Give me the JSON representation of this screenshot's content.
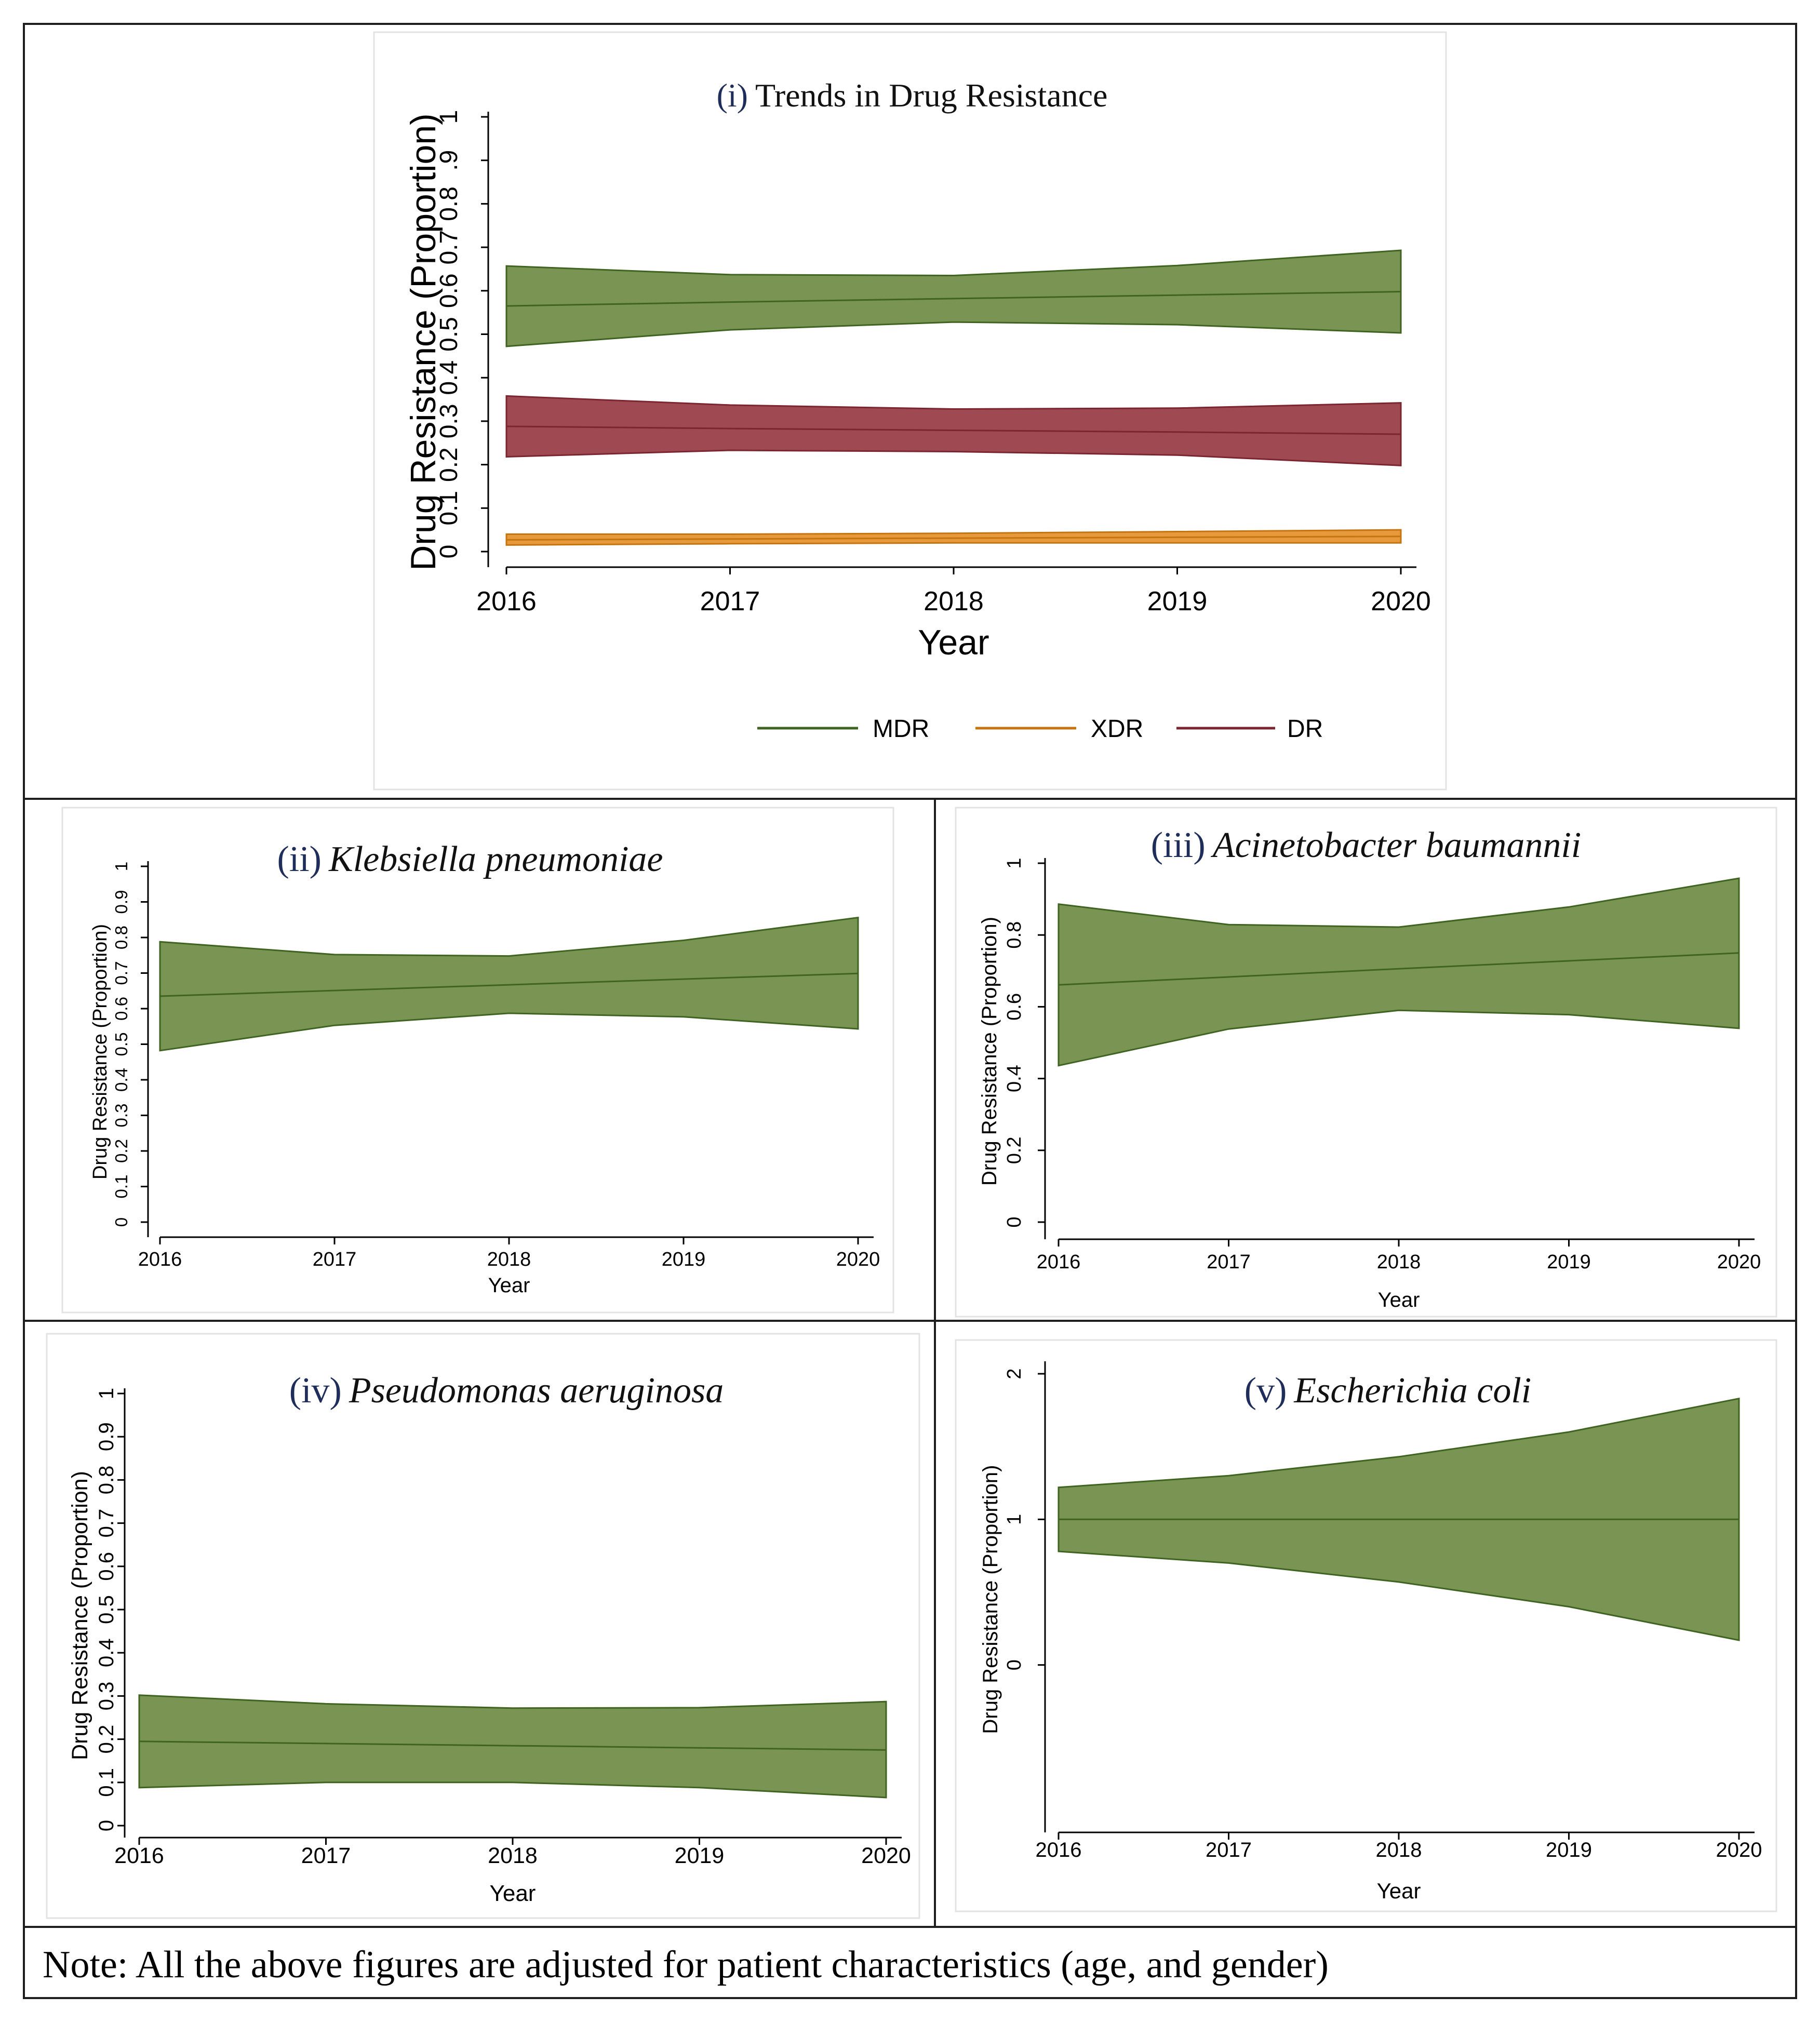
{
  "note": "Note: All the above figures are adjusted for patient characteristics (age, and gender)",
  "colors": {
    "MDR": "#7a9553",
    "XDR": "#e69a3c",
    "DR": "#9f4a52",
    "MDR_edge": "#3f6320",
    "XDR_edge": "#c57410",
    "DR_edge": "#7b2530"
  },
  "chart_data": [
    {
      "id": "p1",
      "type": "area",
      "title_num": "(i)",
      "title": "Trends in Drug Resistance",
      "xlabel": "Year",
      "ylabel": "Drug Resistance (Proportion)",
      "x": [
        2016,
        2017,
        2018,
        2019,
        2020
      ],
      "xlim": [
        2016,
        2020
      ],
      "ylim": [
        0,
        1
      ],
      "xticks": [
        "2016",
        "2017",
        "2018",
        "2019",
        "2020"
      ],
      "yticks": [
        {
          "v": 0,
          "t": "0"
        },
        {
          "v": 0.1,
          "t": "0.1"
        },
        {
          "v": 0.2,
          "t": "0.2"
        },
        {
          "v": 0.3,
          "t": "0.3"
        },
        {
          "v": 0.4,
          "t": "0.4"
        },
        {
          "v": 0.5,
          "t": "0.5"
        },
        {
          "v": 0.6,
          "t": "0.6"
        },
        {
          "v": 0.7,
          "t": "0.7"
        },
        {
          "v": 0.8,
          "t": "0.8"
        },
        {
          "v": 0.9,
          "t": ".9"
        },
        {
          "v": 1,
          "t": "1"
        }
      ],
      "legend": [
        "MDR",
        "XDR",
        "DR"
      ],
      "series": [
        {
          "name": "MDR",
          "color": "MDR",
          "mean": [
            0.565,
            0.574,
            0.582,
            0.59,
            0.598
          ],
          "lower": [
            0.472,
            0.51,
            0.528,
            0.522,
            0.503
          ],
          "upper": [
            0.657,
            0.637,
            0.635,
            0.658,
            0.693
          ]
        },
        {
          "name": "DR",
          "color": "DR",
          "mean": [
            0.288,
            0.283,
            0.279,
            0.275,
            0.27
          ],
          "lower": [
            0.218,
            0.233,
            0.23,
            0.222,
            0.198
          ],
          "upper": [
            0.358,
            0.337,
            0.328,
            0.33,
            0.342
          ]
        },
        {
          "name": "XDR",
          "color": "XDR",
          "mean": [
            0.027,
            0.029,
            0.031,
            0.033,
            0.035
          ],
          "lower": [
            0.015,
            0.018,
            0.02,
            0.02,
            0.02
          ],
          "upper": [
            0.04,
            0.04,
            0.042,
            0.046,
            0.05
          ]
        }
      ]
    },
    {
      "id": "p2",
      "type": "area",
      "title_num": "(ii)",
      "title": "Klebsiella pneumoniae",
      "xlabel": "Year",
      "ylabel": "Drug Resistance (Proportion)",
      "x": [
        2016,
        2017,
        2018,
        2019,
        2020
      ],
      "xlim": [
        2016,
        2020
      ],
      "ylim": [
        0,
        1
      ],
      "xticks": [
        "2016",
        "2017",
        "2018",
        "2019",
        "2020"
      ],
      "yticks": [
        {
          "v": 0,
          "t": "0"
        },
        {
          "v": 0.1,
          "t": "0.1"
        },
        {
          "v": 0.2,
          "t": "0.2"
        },
        {
          "v": 0.3,
          "t": "0.3"
        },
        {
          "v": 0.4,
          "t": "0.4"
        },
        {
          "v": 0.5,
          "t": "0.5"
        },
        {
          "v": 0.6,
          "t": "0.6"
        },
        {
          "v": 0.7,
          "t": "0.7"
        },
        {
          "v": 0.8,
          "t": "0.8"
        },
        {
          "v": 0.9,
          "t": "0.9"
        },
        {
          "v": 1,
          "t": "1"
        }
      ],
      "series": [
        {
          "name": "MDR",
          "color": "MDR",
          "mean": [
            0.635,
            0.651,
            0.667,
            0.683,
            0.699
          ],
          "lower": [
            0.482,
            0.553,
            0.587,
            0.577,
            0.543
          ],
          "upper": [
            0.788,
            0.752,
            0.748,
            0.792,
            0.856
          ]
        }
      ]
    },
    {
      "id": "p3",
      "type": "area",
      "title_num": "(iii)",
      "title": "Acinetobacter baumannii",
      "xlabel": "Year",
      "ylabel": "Drug Resistance (Proportion)",
      "x": [
        2016,
        2017,
        2018,
        2019,
        2020
      ],
      "xlim": [
        2016,
        2020
      ],
      "ylim": [
        0,
        1
      ],
      "xticks": [
        "2016",
        "2017",
        "2018",
        "2019",
        "2020"
      ],
      "yticks": [
        {
          "v": 0,
          "t": "0"
        },
        {
          "v": 0.2,
          "t": "0.2"
        },
        {
          "v": 0.4,
          "t": "0.4"
        },
        {
          "v": 0.6,
          "t": "0.6"
        },
        {
          "v": 0.8,
          "t": "0.8"
        },
        {
          "v": 1,
          "t": "1"
        }
      ],
      "series": [
        {
          "name": "MDR",
          "color": "MDR",
          "mean": [
            0.661,
            0.683,
            0.706,
            0.728,
            0.75
          ],
          "lower": [
            0.436,
            0.538,
            0.59,
            0.578,
            0.54
          ],
          "upper": [
            0.886,
            0.829,
            0.822,
            0.878,
            0.958
          ]
        }
      ]
    },
    {
      "id": "p4",
      "type": "area",
      "title_num": "(iv)",
      "title": "Pseudomonas aeruginosa",
      "xlabel": "Year",
      "ylabel": "Drug Resistance (Proportion)",
      "x": [
        2016,
        2017,
        2018,
        2019,
        2020
      ],
      "xlim": [
        2016,
        2020
      ],
      "ylim": [
        0,
        1
      ],
      "xticks": [
        "2016",
        "2017",
        "2018",
        "2019",
        "2020"
      ],
      "yticks": [
        {
          "v": 0,
          "t": "0"
        },
        {
          "v": 0.1,
          "t": "0.1"
        },
        {
          "v": 0.2,
          "t": "0.2"
        },
        {
          "v": 0.3,
          "t": "0.3"
        },
        {
          "v": 0.4,
          "t": "0.4"
        },
        {
          "v": 0.5,
          "t": "0.5"
        },
        {
          "v": 0.6,
          "t": "0.6"
        },
        {
          "v": 0.7,
          "t": "0.7"
        },
        {
          "v": 0.8,
          "t": "0.8"
        },
        {
          "v": 0.9,
          "t": "0.9"
        },
        {
          "v": 1,
          "t": "1"
        }
      ],
      "series": [
        {
          "name": "MDR",
          "color": "MDR",
          "mean": [
            0.195,
            0.19,
            0.185,
            0.18,
            0.175
          ],
          "lower": [
            0.088,
            0.1,
            0.1,
            0.088,
            0.065
          ],
          "upper": [
            0.302,
            0.282,
            0.272,
            0.273,
            0.287
          ]
        }
      ]
    },
    {
      "id": "p5",
      "type": "area",
      "title_num": "(v)",
      "title": "Escherichia coli",
      "xlabel": "Year",
      "ylabel": "Drug Resistance (Proportion)",
      "x": [
        2016,
        2017,
        2018,
        2019,
        2020
      ],
      "xlim": [
        2016,
        2020
      ],
      "ylim": [
        -1.1,
        2.05
      ],
      "xticks": [
        "2016",
        "2017",
        "2018",
        "2019",
        "2020"
      ],
      "yticks": [
        {
          "v": 0,
          "t": "0"
        },
        {
          "v": 1,
          "t": "1"
        },
        {
          "v": 2,
          "t": "2"
        }
      ],
      "series": [
        {
          "name": "MDR",
          "color": "MDR",
          "mean": [
            1.0,
            1.0,
            1.0,
            1.0,
            1.0
          ],
          "lower": [
            0.78,
            0.7,
            0.57,
            0.4,
            0.17
          ],
          "upper": [
            1.22,
            1.3,
            1.43,
            1.6,
            1.83
          ]
        }
      ]
    }
  ]
}
